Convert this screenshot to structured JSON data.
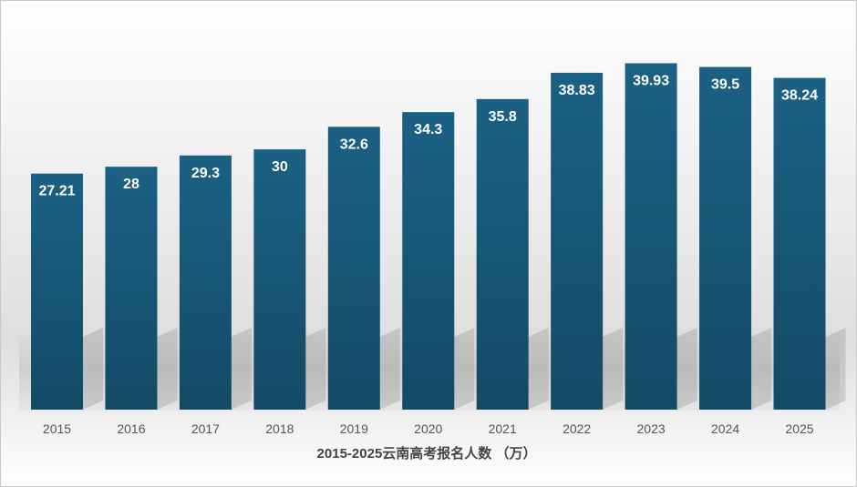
{
  "chart_data": {
    "type": "bar",
    "title": "",
    "xlabel": "2015-2025云南高考报名人数 （万）",
    "ylabel": "",
    "categories": [
      "2015",
      "2016",
      "2017",
      "2018",
      "2019",
      "2020",
      "2021",
      "2022",
      "2023",
      "2024",
      "2025"
    ],
    "values": [
      27.21,
      28,
      29.3,
      30,
      32.6,
      34.3,
      35.8,
      38.83,
      39.93,
      39.5,
      38.24
    ],
    "value_labels": [
      "27.21",
      "28",
      "29.3",
      "30",
      "32.6",
      "34.3",
      "35.8",
      "38.83",
      "39.93",
      "39.5",
      "38.24"
    ],
    "ylim": [
      0,
      47
    ],
    "grid": false,
    "legend": "none",
    "colors": {
      "bar_top": "#1b6183",
      "bar_bottom": "#134a66",
      "label": "#ffffff"
    }
  }
}
